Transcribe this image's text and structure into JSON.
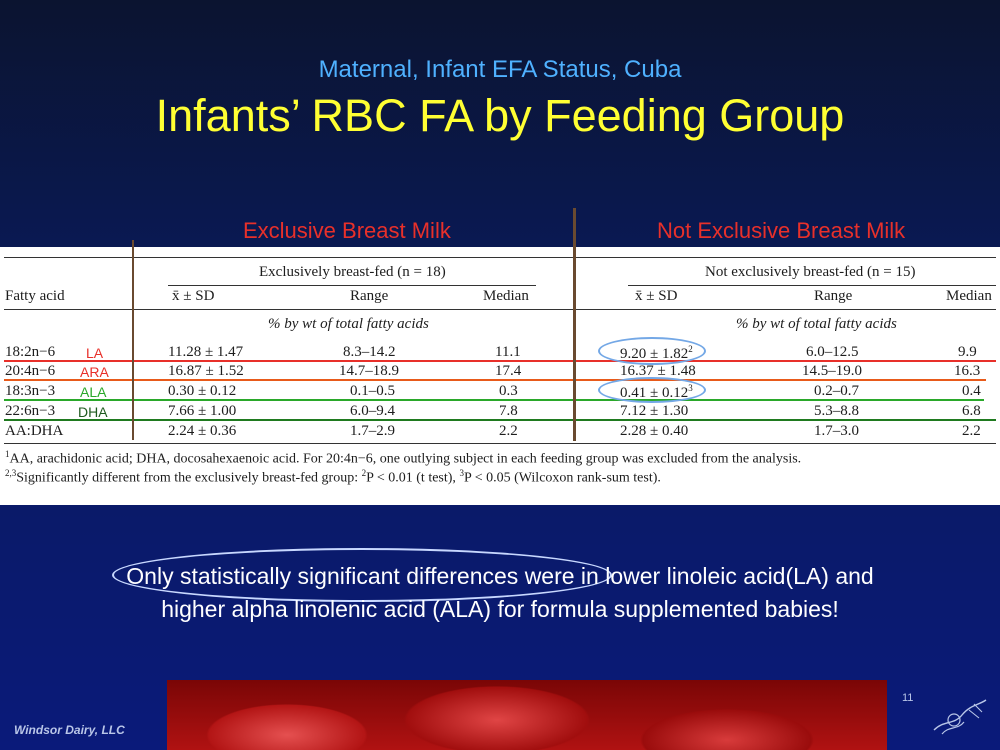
{
  "slide": {
    "subtitle": "Maternal, Infant EFA Status, Cuba",
    "title": "Infants’ RBC FA by Feeding Group",
    "group_left": "Exclusive Breast Milk",
    "group_right": "Not Exclusive Breast Milk"
  },
  "table": {
    "col_fatty_acid": "Fatty acid",
    "group1_header": "Exclusively breast-fed (n = 18)",
    "group2_header": "Not exclusively breast-fed (n = 15)",
    "mean_sd": "x̄ ± SD",
    "range": "Range",
    "median": "Median",
    "unit": "% by wt of total fatty acids",
    "rows": [
      {
        "fa": "18:2n−6",
        "tag": "LA",
        "g1_mean": "11.28 ± 1.47",
        "g1_range": "8.3–14.2",
        "g1_median": "11.1",
        "g2_mean": "9.20 ± 1.82",
        "g2_sup": "2",
        "g2_range": "6.0–12.5",
        "g2_median": "9.9"
      },
      {
        "fa": "20:4n−6",
        "tag": "ARA",
        "g1_mean": "16.87 ± 1.52",
        "g1_range": "14.7–18.9",
        "g1_median": "17.4",
        "g2_mean": "16.37 ± 1.48",
        "g2_sup": "",
        "g2_range": "14.5–19.0",
        "g2_median": "16.3"
      },
      {
        "fa": "18:3n−3",
        "tag": "ALA",
        "g1_mean": "0.30 ± 0.12",
        "g1_range": "0.1–0.5",
        "g1_median": "0.3",
        "g2_mean": "0.41 ± 0.12",
        "g2_sup": "3",
        "g2_range": "0.2–0.7",
        "g2_median": "0.4"
      },
      {
        "fa": "22:6n−3",
        "tag": "DHA",
        "g1_mean": "7.66 ± 1.00",
        "g1_range": "6.0–9.4",
        "g1_median": "7.8",
        "g2_mean": "7.12 ± 1.30",
        "g2_sup": "",
        "g2_range": "5.3–8.8",
        "g2_median": "6.8"
      },
      {
        "fa": "AA:DHA",
        "tag": "",
        "g1_mean": "2.24 ± 0.36",
        "g1_range": "1.7–2.9",
        "g1_median": "2.2",
        "g2_mean": "2.28 ± 0.40",
        "g2_sup": "",
        "g2_range": "1.7–3.0",
        "g2_median": "2.2"
      }
    ],
    "footnote1_mark": "1",
    "footnote1": "AA, arachidonic acid; DHA, docosahexaenoic acid. For 20:4n−6, one outlying subject in each feeding group was excluded from the analysis.",
    "footnote2_mark": "2,3",
    "footnote2_a": "Significantly different from the exclusively breast-fed group: ",
    "footnote2_b": "2",
    "footnote2_c": "P < 0.01 (t test), ",
    "footnote2_d": "3",
    "footnote2_e": "P < 0.05 (Wilcoxon rank-sum test)."
  },
  "conclusion": "Only statistically significant differences were in lower linoleic acid(LA) and higher alpha linolenic acid (ALA) for formula supplemented babies!",
  "footer": {
    "company": "Windsor Dairy, LLC",
    "page_number": "11"
  },
  "colors": {
    "title": "#ffff33",
    "subtitle": "#4fb1ff",
    "group_labels": "#e8302a",
    "la_line": "#e8302a",
    "ara_line": "#e85a1a",
    "ala_line": "#2aa82a",
    "dha_line": "#1f7a1f",
    "circle": "#74a8e6"
  }
}
